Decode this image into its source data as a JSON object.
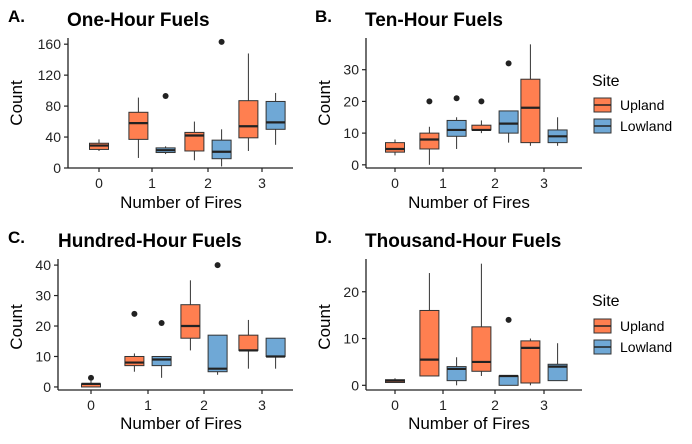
{
  "legend": {
    "title": "Site",
    "entries": [
      {
        "label": "Upland",
        "color": "#FF7F50"
      },
      {
        "label": "Lowland",
        "color": "#6FA8D6"
      }
    ]
  },
  "chart_data": [
    {
      "type": "boxplot",
      "panel_label": "A.",
      "title": "One-Hour Fuels",
      "xlabel": "Number of Fires",
      "ylabel": "Count",
      "categories": [
        "0",
        "1",
        "2",
        "3"
      ],
      "ylim": [
        0,
        168
      ],
      "yticks": [
        0,
        40,
        80,
        120,
        160
      ],
      "series": [
        {
          "name": "Upland",
          "boxes": [
            {
              "x": "0",
              "lower_whisker": 22,
              "q1": 24,
              "median": 29,
              "q3": 32,
              "upper_whisker": 37,
              "outliers": []
            },
            {
              "x": "1",
              "lower_whisker": 13,
              "q1": 37,
              "median": 58,
              "q3": 72,
              "upper_whisker": 91,
              "outliers": []
            },
            {
              "x": "2",
              "lower_whisker": 10,
              "q1": 22,
              "median": 42,
              "q3": 46,
              "upper_whisker": 60,
              "outliers": []
            },
            {
              "x": "3",
              "lower_whisker": 22,
              "q1": 39,
              "median": 54,
              "q3": 87,
              "upper_whisker": 148,
              "outliers": []
            }
          ]
        },
        {
          "name": "Lowland",
          "boxes": [
            {
              "x": "1",
              "lower_whisker": 18,
              "q1": 20,
              "median": 23,
              "q3": 26,
              "upper_whisker": 28,
              "outliers": [
                93
              ]
            },
            {
              "x": "2",
              "lower_whisker": 2,
              "q1": 12,
              "median": 21,
              "q3": 36,
              "upper_whisker": 50,
              "outliers": [
                163
              ]
            },
            {
              "x": "3",
              "lower_whisker": 30,
              "q1": 50,
              "median": 59,
              "q3": 86,
              "upper_whisker": 97,
              "outliers": []
            }
          ]
        }
      ]
    },
    {
      "type": "boxplot",
      "panel_label": "B.",
      "title": "Ten-Hour Fuels",
      "xlabel": "Number of Fires",
      "ylabel": "Count",
      "categories": [
        "0",
        "1",
        "2",
        "3"
      ],
      "ylim": [
        -1,
        40
      ],
      "yticks": [
        0,
        10,
        20,
        30
      ],
      "series": [
        {
          "name": "Upland",
          "boxes": [
            {
              "x": "0",
              "lower_whisker": 3,
              "q1": 4,
              "median": 5,
              "q3": 7,
              "upper_whisker": 8,
              "outliers": []
            },
            {
              "x": "1",
              "lower_whisker": 0,
              "q1": 5,
              "median": 8,
              "q3": 10,
              "upper_whisker": 12,
              "outliers": [
                20
              ]
            },
            {
              "x": "2",
              "lower_whisker": 10,
              "q1": 11,
              "median": 11,
              "q3": 12.5,
              "upper_whisker": 14,
              "outliers": [
                20
              ]
            },
            {
              "x": "3",
              "lower_whisker": 6,
              "q1": 7,
              "median": 18,
              "q3": 27,
              "upper_whisker": 38,
              "outliers": []
            }
          ]
        },
        {
          "name": "Lowland",
          "boxes": [
            {
              "x": "1",
              "lower_whisker": 5,
              "q1": 9,
              "median": 11,
              "q3": 14,
              "upper_whisker": 15,
              "outliers": [
                21
              ]
            },
            {
              "x": "2",
              "lower_whisker": 7,
              "q1": 10,
              "median": 13,
              "q3": 17,
              "upper_whisker": 17,
              "outliers": [
                32
              ]
            },
            {
              "x": "3",
              "lower_whisker": 6,
              "q1": 7,
              "median": 9,
              "q3": 11,
              "upper_whisker": 15,
              "outliers": []
            }
          ]
        }
      ]
    },
    {
      "type": "boxplot",
      "panel_label": "C.",
      "title": "Hundred-Hour Fuels",
      "xlabel": "Number of Fires",
      "ylabel": "Count",
      "categories": [
        "0",
        "1",
        "2",
        "3"
      ],
      "ylim": [
        -1,
        42
      ],
      "yticks": [
        0,
        10,
        20,
        30,
        40
      ],
      "series": [
        {
          "name": "Upland",
          "boxes": [
            {
              "x": "0",
              "lower_whisker": 0,
              "q1": 0,
              "median": 1,
              "q3": 1,
              "upper_whisker": 2,
              "outliers": [
                3
              ]
            },
            {
              "x": "1",
              "lower_whisker": 5,
              "q1": 7,
              "median": 8,
              "q3": 10,
              "upper_whisker": 11,
              "outliers": [
                24
              ]
            },
            {
              "x": "2",
              "lower_whisker": 12,
              "q1": 16,
              "median": 20,
              "q3": 27,
              "upper_whisker": 35,
              "outliers": []
            },
            {
              "x": "3",
              "lower_whisker": 6,
              "q1": 12,
              "median": 12,
              "q3": 17,
              "upper_whisker": 22,
              "outliers": []
            }
          ]
        },
        {
          "name": "Lowland",
          "boxes": [
            {
              "x": "1",
              "lower_whisker": 3,
              "q1": 7,
              "median": 9,
              "q3": 10,
              "upper_whisker": 10,
              "outliers": [
                21
              ]
            },
            {
              "x": "2",
              "lower_whisker": 4,
              "q1": 5,
              "median": 6,
              "q3": 17,
              "upper_whisker": 17,
              "outliers": [
                40
              ]
            },
            {
              "x": "3",
              "lower_whisker": 6,
              "q1": 10,
              "median": 10,
              "q3": 16,
              "upper_whisker": 16,
              "outliers": []
            }
          ]
        }
      ]
    },
    {
      "type": "boxplot",
      "panel_label": "D.",
      "title": "Thousand-Hour Fuels",
      "xlabel": "Number of Fires",
      "ylabel": "Count",
      "categories": [
        "0",
        "1",
        "2",
        "3"
      ],
      "ylim": [
        -1,
        27
      ],
      "yticks": [
        0,
        10,
        20
      ],
      "series": [
        {
          "name": "Upland",
          "boxes": [
            {
              "x": "0",
              "lower_whisker": 0.5,
              "q1": 0.6,
              "median": 1,
              "q3": 1.2,
              "upper_whisker": 1.5,
              "outliers": []
            },
            {
              "x": "1",
              "lower_whisker": 2,
              "q1": 2,
              "median": 5.5,
              "q3": 16,
              "upper_whisker": 24,
              "outliers": []
            },
            {
              "x": "2",
              "lower_whisker": 2,
              "q1": 3,
              "median": 5,
              "q3": 12.5,
              "upper_whisker": 26,
              "outliers": []
            },
            {
              "x": "3",
              "lower_whisker": 0,
              "q1": 0.5,
              "median": 8,
              "q3": 9.5,
              "upper_whisker": 10,
              "outliers": []
            }
          ]
        },
        {
          "name": "Lowland",
          "boxes": [
            {
              "x": "1",
              "lower_whisker": 0,
              "q1": 1,
              "median": 3.5,
              "q3": 4,
              "upper_whisker": 6,
              "outliers": []
            },
            {
              "x": "2",
              "lower_whisker": 0,
              "q1": 0,
              "median": 2,
              "q3": 2,
              "upper_whisker": 2,
              "outliers": [
                14
              ]
            },
            {
              "x": "3",
              "lower_whisker": 1,
              "q1": 1,
              "median": 4,
              "q3": 4.5,
              "upper_whisker": 9,
              "outliers": []
            }
          ]
        }
      ]
    }
  ]
}
